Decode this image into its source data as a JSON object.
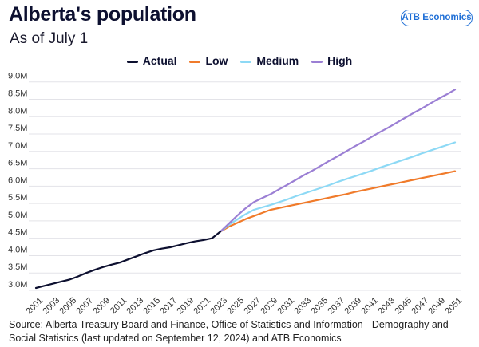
{
  "header": {
    "title": "Alberta's population",
    "subtitle": "As of July 1",
    "badge": "ATB Economics"
  },
  "source": "Source: Alberta Treasury Board and Finance, Office of Statistics and Information - Demography and Social Statistics (last updated on September 12, 2024) and ATB Economics",
  "chart_data": {
    "type": "line",
    "title": "Alberta's population",
    "subtitle": "As of July 1",
    "xlabel": "",
    "ylabel": "",
    "xlim": [
      2001,
      2051
    ],
    "ylim": [
      3.0,
      9.0
    ],
    "grid": true,
    "legend_placement": "top",
    "x_tick_labels": [
      "2001",
      "2003",
      "2005",
      "2007",
      "2009",
      "2011",
      "2013",
      "2015",
      "2017",
      "2019",
      "2021",
      "2023",
      "2025",
      "2027",
      "2029",
      "2031",
      "2033",
      "2035",
      "2037",
      "2039",
      "2041",
      "2043",
      "2045",
      "2047",
      "2049",
      "2051"
    ],
    "y_tick_labels": [
      "3.0M",
      "3.5M",
      "4.0M",
      "4.5M",
      "5.0M",
      "5.5M",
      "6.0M",
      "6.5M",
      "7.0M",
      "7.5M",
      "8.0M",
      "8.5M",
      "9.0M"
    ],
    "y_ticks": [
      3.0,
      3.5,
      4.0,
      4.5,
      5.0,
      5.5,
      6.0,
      6.5,
      7.0,
      7.5,
      8.0,
      8.5,
      9.0
    ],
    "series": [
      {
        "name": "Actual",
        "color": "#0d1030",
        "x_start": 2001,
        "values": [
          3.07,
          3.13,
          3.19,
          3.25,
          3.31,
          3.4,
          3.5,
          3.59,
          3.67,
          3.74,
          3.8,
          3.89,
          3.98,
          4.07,
          4.15,
          4.2,
          4.24,
          4.3,
          4.36,
          4.41,
          4.45,
          4.5,
          4.69
        ]
      },
      {
        "name": "Low",
        "color": "#f07b2b",
        "x_start": 2023,
        "values": [
          4.69,
          4.83,
          4.94,
          5.05,
          5.14,
          5.23,
          5.32,
          5.37,
          5.42,
          5.47,
          5.52,
          5.57,
          5.62,
          5.67,
          5.72,
          5.77,
          5.83,
          5.88,
          5.93,
          5.98,
          6.03,
          6.08,
          6.13,
          6.18,
          6.23,
          6.28,
          6.33,
          6.38,
          6.43
        ]
      },
      {
        "name": "Medium",
        "color": "#8dd9f5",
        "x_start": 2023,
        "values": [
          4.69,
          4.88,
          5.04,
          5.19,
          5.32,
          5.39,
          5.46,
          5.54,
          5.62,
          5.71,
          5.79,
          5.87,
          5.95,
          6.03,
          6.12,
          6.2,
          6.28,
          6.36,
          6.44,
          6.53,
          6.61,
          6.69,
          6.77,
          6.85,
          6.94,
          7.02,
          7.1,
          7.18,
          7.26
        ]
      },
      {
        "name": "High",
        "color": "#9b7fd4",
        "x_start": 2023,
        "values": [
          4.69,
          4.92,
          5.15,
          5.36,
          5.54,
          5.66,
          5.77,
          5.91,
          6.04,
          6.18,
          6.32,
          6.45,
          6.59,
          6.73,
          6.86,
          7.0,
          7.14,
          7.27,
          7.41,
          7.55,
          7.68,
          7.82,
          7.96,
          8.1,
          8.23,
          8.37,
          8.51,
          8.64,
          8.78
        ]
      }
    ]
  }
}
